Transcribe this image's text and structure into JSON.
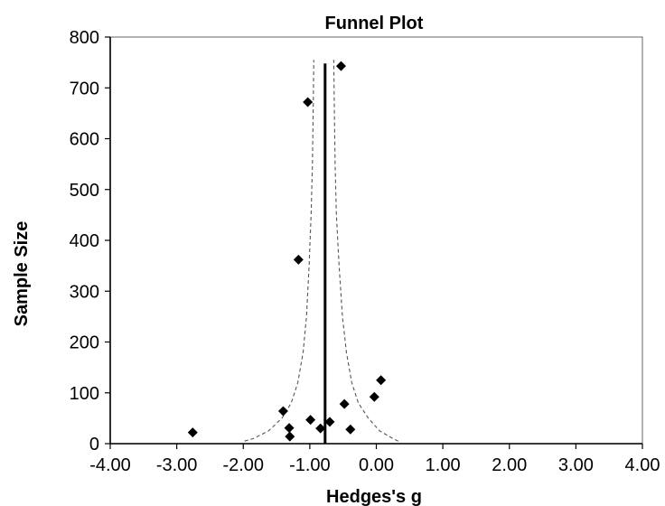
{
  "chart_data": {
    "type": "scatter",
    "title": "Funnel Plot",
    "xlabel": "Hedges's g",
    "ylabel": "Sample Size",
    "xlim": [
      -4,
      4
    ],
    "ylim": [
      0,
      800
    ],
    "x_ticks": [
      "-4.00",
      "-3.00",
      "-2.00",
      "-1.00",
      "0.00",
      "1.00",
      "2.00",
      "3.00",
      "4.00"
    ],
    "y_ticks": [
      "0",
      "100",
      "200",
      "300",
      "400",
      "500",
      "600",
      "700",
      "800"
    ],
    "grid": false,
    "legend": "none",
    "colors": {
      "points": "#000000",
      "mean_line": "#000000",
      "funnel": "#555555"
    },
    "mean_effect": {
      "x": -0.77,
      "y_range": [
        0,
        748
      ]
    },
    "funnel": {
      "left": [
        [
          -1.98,
          5
        ],
        [
          -1.85,
          10
        ],
        [
          -1.62,
          25
        ],
        [
          -1.42,
          50
        ],
        [
          -1.28,
          80
        ],
        [
          -1.18,
          120
        ],
        [
          -1.1,
          180
        ],
        [
          -1.05,
          250
        ],
        [
          -1.01,
          350
        ],
        [
          -0.98,
          450
        ],
        [
          -0.96,
          550
        ],
        [
          -0.95,
          650
        ],
        [
          -0.94,
          755
        ]
      ],
      "right": [
        [
          0.33,
          5
        ],
        [
          0.25,
          10
        ],
        [
          0.05,
          25
        ],
        [
          -0.12,
          50
        ],
        [
          -0.27,
          80
        ],
        [
          -0.37,
          120
        ],
        [
          -0.45,
          180
        ],
        [
          -0.51,
          250
        ],
        [
          -0.56,
          350
        ],
        [
          -0.6,
          450
        ],
        [
          -0.62,
          550
        ],
        [
          -0.63,
          650
        ],
        [
          -0.64,
          755
        ]
      ]
    },
    "series": [
      {
        "points": [
          {
            "x": -0.53,
            "y": 743
          },
          {
            "x": -1.03,
            "y": 672
          },
          {
            "x": -1.17,
            "y": 362
          },
          {
            "x": 0.07,
            "y": 125
          },
          {
            "x": -0.03,
            "y": 92
          },
          {
            "x": -0.48,
            "y": 78
          },
          {
            "x": -1.4,
            "y": 64
          },
          {
            "x": -0.99,
            "y": 47
          },
          {
            "x": -0.7,
            "y": 43
          },
          {
            "x": -1.31,
            "y": 31
          },
          {
            "x": -0.84,
            "y": 30
          },
          {
            "x": -0.39,
            "y": 28
          },
          {
            "x": -2.76,
            "y": 22
          },
          {
            "x": -1.3,
            "y": 14
          }
        ]
      }
    ]
  }
}
